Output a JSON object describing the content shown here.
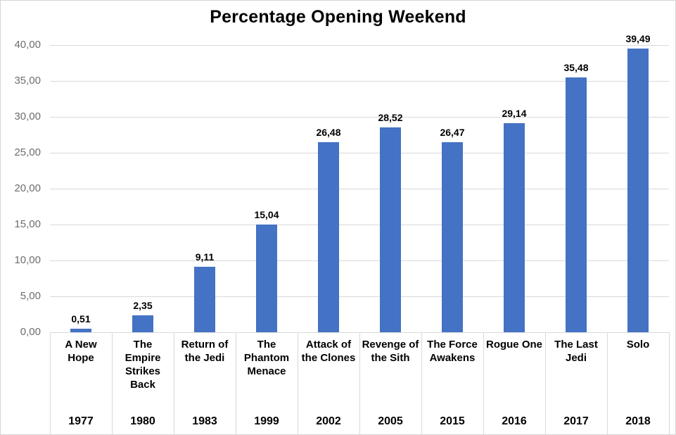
{
  "window": {
    "background_color": "#FFFFFF",
    "border_color": "#D6D6D6"
  },
  "chart_data": {
    "type": "bar",
    "title": "Percentage Opening Weekend",
    "xlabel": "",
    "ylabel": "",
    "categories": [
      "A New Hope",
      "The Empire Strikes Back",
      "Return of the Jedi",
      "The Phantom Menace",
      "Attack of the Clones",
      "Revenge of the Sith",
      "The Force Awakens",
      "Rogue One",
      "The Last Jedi",
      "Solo"
    ],
    "category_display": [
      "A New\nHope",
      "The\nEmpire\nStrikes\nBack",
      "Return of\nthe Jedi",
      "The\nPhantom\nMenace",
      "Attack of\nthe Clones",
      "Revenge of\nthe Sith",
      "The Force\nAwakens",
      "Rogue One",
      "The Last\nJedi",
      "Solo"
    ],
    "years": [
      "1977",
      "1980",
      "1983",
      "1999",
      "2002",
      "2005",
      "2015",
      "2016",
      "2017",
      "2018"
    ],
    "values": [
      0.51,
      2.35,
      9.11,
      15.04,
      26.48,
      28.52,
      26.47,
      29.14,
      35.48,
      39.49
    ],
    "value_labels": [
      "0,51",
      "2,35",
      "9,11",
      "15,04",
      "26,48",
      "28,52",
      "26,47",
      "29,14",
      "35,48",
      "39,49"
    ],
    "ylim": [
      0,
      40
    ],
    "y_ticks": [
      0,
      5,
      10,
      15,
      20,
      25,
      30,
      35,
      40
    ],
    "y_tick_labels": [
      "0,00",
      "5,00",
      "10,00",
      "15,00",
      "20,00",
      "25,00",
      "30,00",
      "35,00",
      "40,00"
    ],
    "decimal_separator": ",",
    "grid": true,
    "legend": false,
    "bar_color": "#4472C4",
    "gridline_color": "#D9D9D9",
    "tick_label_color": "#6D6D6D",
    "text_color": "#000000"
  }
}
